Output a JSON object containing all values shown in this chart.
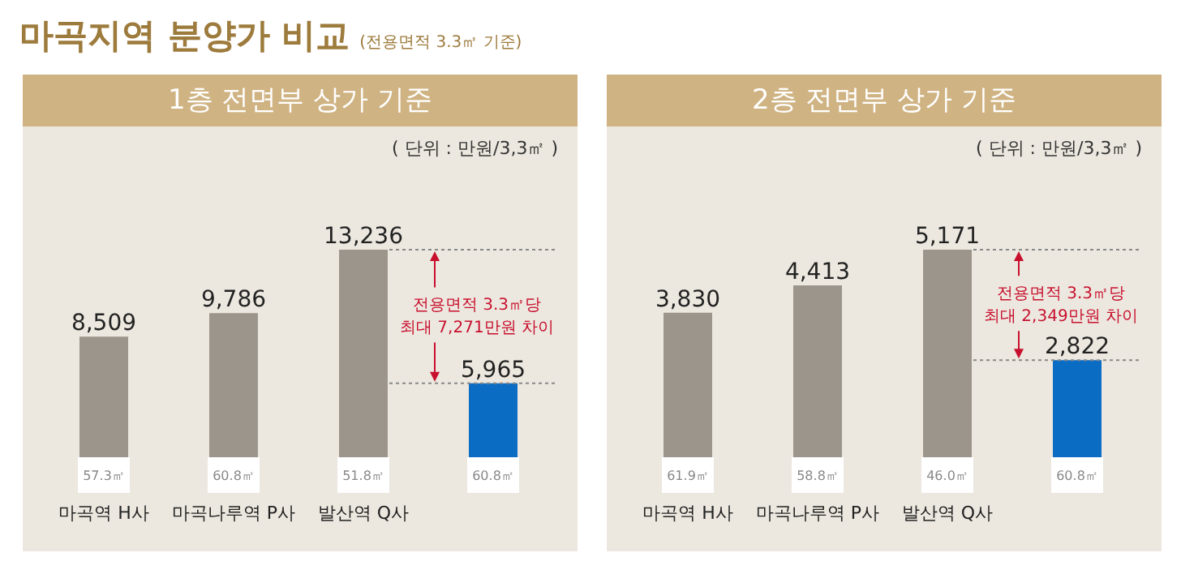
{
  "chart_data": [
    {
      "type": "bar",
      "title": "1층 전면부 상가 기준",
      "subtitle": "( 단위 : 만원/3,3㎡ )",
      "categories": [
        "마곡역 H사",
        "마곡나루역 P사",
        "발산역 Q사",
        null
      ],
      "values": [
        8509,
        9786,
        13236,
        5965
      ],
      "colors": [
        "#9c958c",
        "#9c958c",
        "#9c958c",
        "#0b6cc4"
      ],
      "value_labels": [
        "8,509",
        "9,786",
        "13,236",
        "5,965"
      ],
      "ref_lines": [
        {
          "axis": "y",
          "value": 13236,
          "color": "#888888",
          "line_style": "dotted"
        },
        {
          "axis": "y",
          "value": 5965,
          "color": "#888888",
          "line_style": "dotted"
        }
      ],
      "annotations": [
        "전용면적 3.3㎡당\n최대 7,271만원 차이",
        "57.3㎡",
        "60.8㎡",
        "51.8㎡",
        "60.8㎡",
        "마곡지역 분양가 비교",
        "(전용면적 3.3㎡ 기준)"
      ]
    },
    {
      "type": "bar",
      "title": "2층 전면부 상가 기준",
      "subtitle": "( 단위 : 만원/3,3㎡ )",
      "categories": [
        "마곡역 H사",
        "마곡나루역 P사",
        "발산역 Q사",
        null
      ],
      "values": [
        3830,
        4413,
        5171,
        2822
      ],
      "colors": [
        "#9c958c",
        "#9c958c",
        "#9c958c",
        "#0b6cc4"
      ],
      "value_labels": [
        "3,830",
        "4,413",
        "5,171",
        "2,822"
      ],
      "ref_lines": [
        {
          "axis": "y",
          "value": 5171,
          "color": "#888888",
          "line_style": "dotted"
        },
        {
          "axis": "y",
          "value": 2822,
          "color": "#888888",
          "line_style": "dotted"
        }
      ],
      "annotations": [
        "전용면적 3.3㎡당\n최대 2,349만원 차이",
        "61.9㎡",
        "58.8㎡",
        "46.0㎡",
        "60.8㎡"
      ]
    }
  ]
}
